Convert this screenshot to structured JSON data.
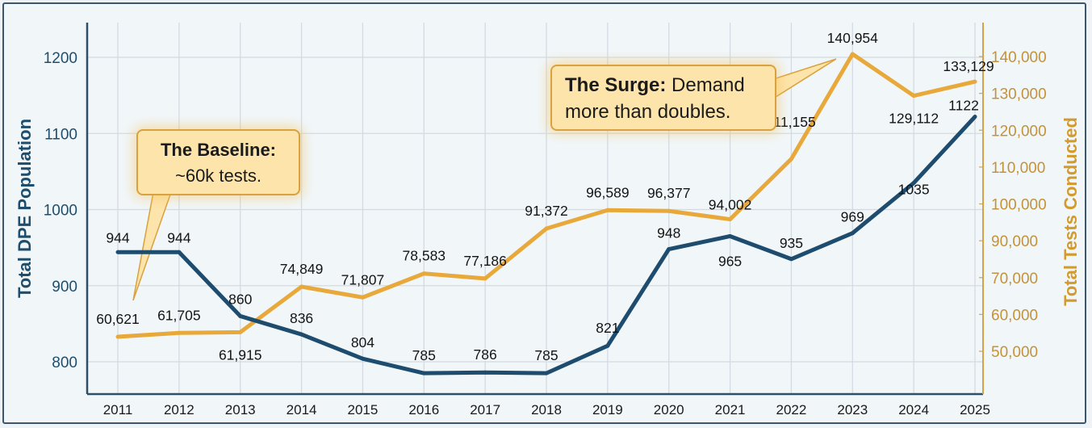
{
  "chart_data": {
    "type": "line",
    "title": "",
    "x": [
      "2011",
      "2012",
      "2013",
      "2014",
      "2015",
      "2016",
      "2017",
      "2018",
      "2019",
      "2020",
      "2021",
      "2022",
      "2023",
      "2024",
      "2025"
    ],
    "series": [
      {
        "name": "Total DPE Population",
        "axis": "left",
        "color": "#1e4c6e",
        "values": [
          944,
          944,
          860,
          836,
          804,
          785,
          786,
          785,
          821,
          948,
          965,
          935,
          969,
          1035,
          1122
        ],
        "labels": [
          "944",
          "944",
          "860",
          "836",
          "804",
          "785",
          "786",
          "785",
          "821",
          "948",
          "965",
          "935",
          "969",
          "1035",
          "1122"
        ]
      },
      {
        "name": "Total Tests Conducted",
        "axis": "right",
        "color": "#e8a93a",
        "values": [
          60621,
          61705,
          61915,
          74849,
          71807,
          78583,
          77186,
          91372,
          96589,
          96377,
          94002,
          111155,
          140954,
          129112,
          133129
        ],
        "labels": [
          "60,621",
          "61,705",
          "61,915",
          "74,849",
          "71,807",
          "78,583",
          "77,186",
          "91,372",
          "96,589",
          "96,377",
          "94,002",
          "111,155",
          "140,954",
          "129,112",
          "133,129"
        ]
      }
    ],
    "ylabel": "Total DPE Population",
    "ylabel_right": "Total Tests Conducted",
    "ylim": [
      770,
      1240
    ],
    "yticks": [
      "1200",
      "1100",
      "1000",
      "900",
      "800"
    ],
    "ytick_values": [
      1200,
      1100,
      1000,
      900,
      800
    ],
    "yticks_right": [
      "140,000",
      "130,000",
      "120,000",
      "110,000",
      "100,000",
      "90,000",
      "70,000",
      "60,000",
      "50,000"
    ],
    "grid": true,
    "annotations": [
      {
        "id": "baseline",
        "bold": "The Baseline:",
        "text": "~60k tests.",
        "points_to": "2011"
      },
      {
        "id": "surge",
        "bold": "The Surge:",
        "text": " Demand more than doubles.",
        "line1_rest": " Demand",
        "line2": "more than doubles.",
        "points_to": "2023"
      }
    ]
  }
}
